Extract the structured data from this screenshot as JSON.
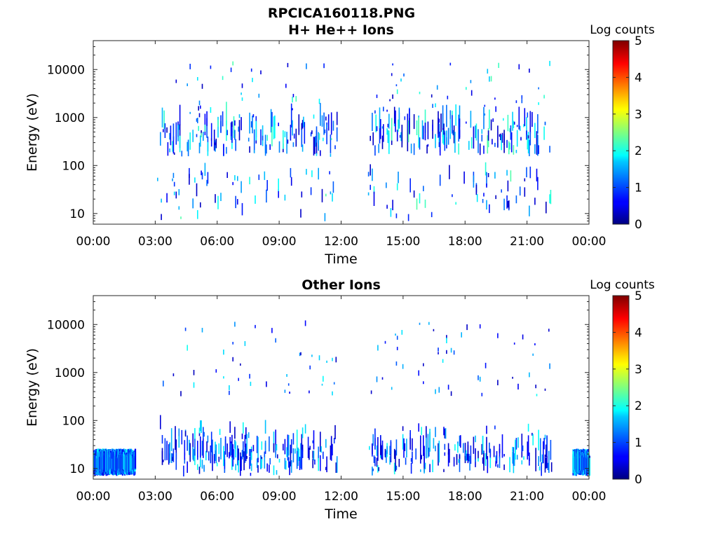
{
  "figure_title": "RPCICA160118.PNG",
  "chart_data": [
    {
      "type": "heatmap",
      "title": "H+ He++ Ions",
      "xlabel": "Time",
      "ylabel": "Energy (eV)",
      "x_ticks": [
        "00:00",
        "03:00",
        "06:00",
        "09:00",
        "12:00",
        "15:00",
        "18:00",
        "21:00",
        "00:00"
      ],
      "xlim_hours": [
        0,
        24
      ],
      "y_scale": "log",
      "y_ticks": [
        "10",
        "100",
        "1000",
        "10000"
      ],
      "ylim": [
        6,
        40000
      ],
      "colorbar": {
        "label": "Log counts",
        "range": [
          0,
          5
        ],
        "ticks": [
          "0",
          "1",
          "2",
          "3",
          "4",
          "5"
        ]
      },
      "colormap": "jet",
      "grid": false,
      "data_coverage_hours": [
        [
          3.0,
          7.2
        ],
        [
          7.5,
          11.8
        ],
        [
          13.3,
          22.2
        ]
      ],
      "main_energy_band_eV": [
        150,
        700
      ],
      "count_level_typical": [
        0.3,
        2.3
      ]
    },
    {
      "type": "heatmap",
      "title": "Other Ions",
      "xlabel": "Time",
      "ylabel": "Energy (eV)",
      "x_ticks": [
        "00:00",
        "03:00",
        "06:00",
        "09:00",
        "12:00",
        "15:00",
        "18:00",
        "21:00",
        "00:00"
      ],
      "xlim_hours": [
        0,
        24
      ],
      "y_scale": "log",
      "y_ticks": [
        "10",
        "100",
        "1000",
        "10000"
      ],
      "ylim": [
        6,
        40000
      ],
      "colorbar": {
        "label": "Log counts",
        "range": [
          0,
          5
        ],
        "ticks": [
          "0",
          "1",
          "2",
          "3",
          "4",
          "5"
        ]
      },
      "colormap": "jet",
      "grid": false,
      "data_coverage_hours": [
        [
          0.0,
          2.0
        ],
        [
          3.0,
          11.8
        ],
        [
          13.3,
          22.2
        ],
        [
          23.2,
          24.0
        ]
      ],
      "main_energy_band_eV": [
        8,
        25
      ],
      "count_level_typical": [
        0.3,
        2.0
      ]
    }
  ]
}
